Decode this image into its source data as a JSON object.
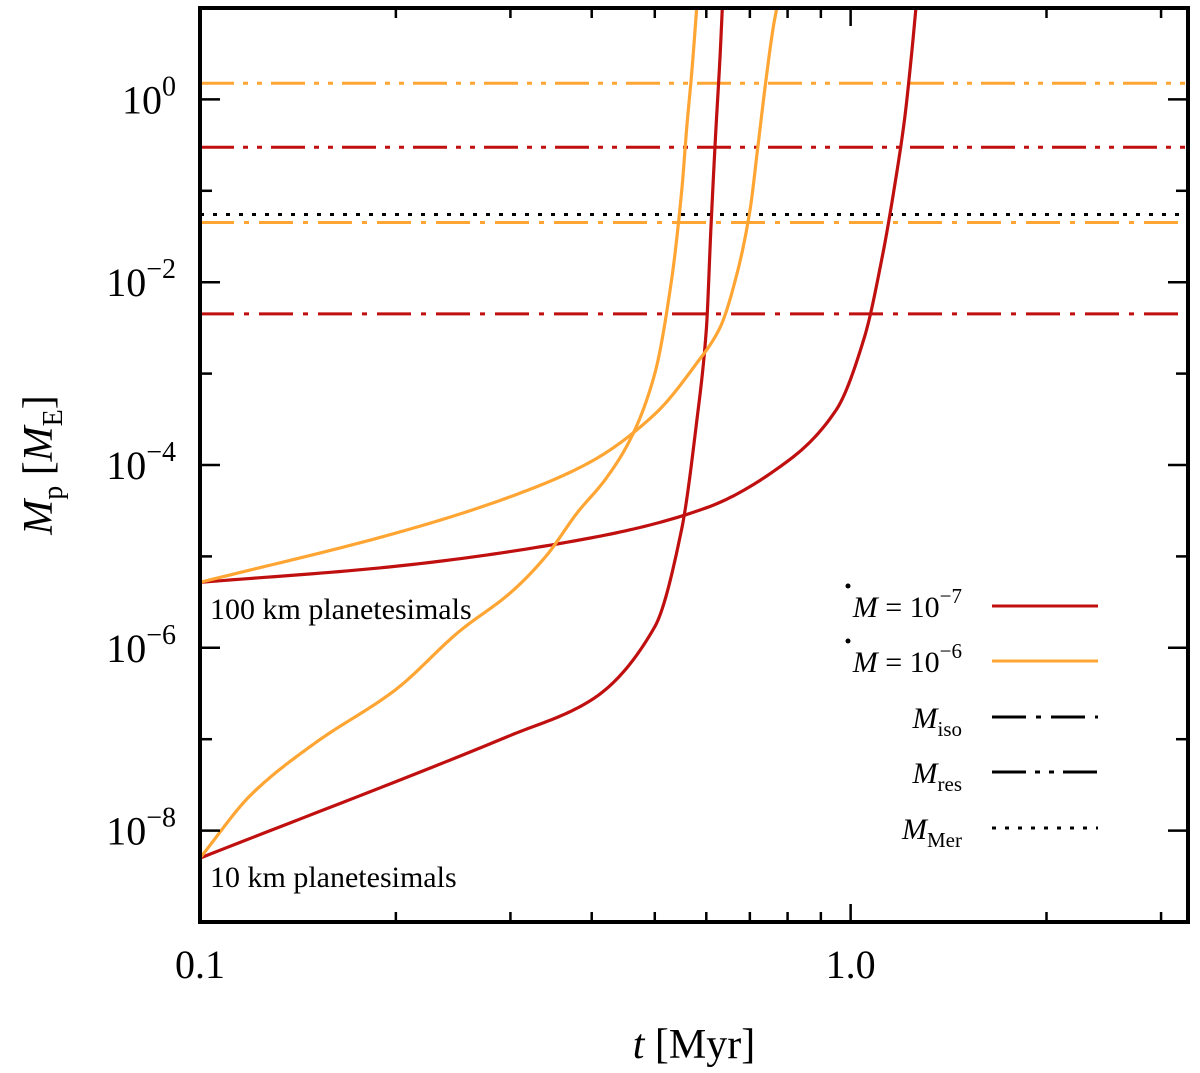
{
  "chart_data": {
    "type": "line",
    "xscale": "log",
    "yscale": "log",
    "xlim": [
      0.1,
      3.3
    ],
    "ylim": [
      1e-09,
      10
    ],
    "xlabel": {
      "var": "t",
      "unit": "[Myr]"
    },
    "ylabel": {
      "var": "M",
      "sub": "p",
      "unit_open": "[",
      "unit_var": "M",
      "unit_sub": "E",
      "unit_close": "]"
    },
    "x_tick_labels": [
      {
        "value": 0.1,
        "label": "0.1"
      },
      {
        "value": 1.0,
        "label": "1.0"
      }
    ],
    "y_tick_labels": [
      {
        "value": 1,
        "base": "10",
        "exp": "0"
      },
      {
        "value": 0.01,
        "base": "10",
        "exp": "−2"
      },
      {
        "value": 0.0001,
        "base": "10",
        "exp": "−4"
      },
      {
        "value": 1e-06,
        "base": "10",
        "exp": "−6"
      },
      {
        "value": 1e-08,
        "base": "10",
        "exp": "−8"
      }
    ],
    "colors": {
      "mdot7": "#c00f0f",
      "mdot6": "#ffa533",
      "mercury": "#000000"
    },
    "series": [
      {
        "name": "Mdot 1e-7, 100 km",
        "color_key": "mdot7",
        "points": [
          [
            0.1,
            5.2e-06
          ],
          [
            0.2,
            7.8e-06
          ],
          [
            0.4,
            1.6e-05
          ],
          [
            0.6,
            3.4e-05
          ],
          [
            0.8,
            0.00011
          ],
          [
            0.95,
            0.0004
          ],
          [
            1.05,
            0.0025
          ],
          [
            1.12,
            0.02
          ],
          [
            1.17,
            0.12
          ],
          [
            1.21,
            0.6
          ],
          [
            1.24,
            3
          ],
          [
            1.26,
            10
          ]
        ]
      },
      {
        "name": "Mdot 1e-7, 10 km",
        "color_key": "mdot7",
        "points": [
          [
            0.1,
            5e-09
          ],
          [
            0.3,
            1.1e-07
          ],
          [
            0.4,
            2.7e-07
          ],
          [
            0.5,
            1.7e-06
          ],
          [
            0.55,
            2e-05
          ],
          [
            0.58,
            0.0003
          ],
          [
            0.6,
            0.003
          ],
          [
            0.61,
            0.04
          ],
          [
            0.62,
            0.4
          ],
          [
            0.63,
            3
          ],
          [
            0.635,
            10
          ]
        ]
      },
      {
        "name": "Mdot 1e-6, 100 km",
        "color_key": "mdot6",
        "points": [
          [
            0.1,
            5.2e-06
          ],
          [
            0.2,
            1.8e-05
          ],
          [
            0.3,
            4.5e-05
          ],
          [
            0.4,
            0.00011
          ],
          [
            0.5,
            0.00036
          ],
          [
            0.58,
            0.0013
          ],
          [
            0.63,
            0.0032
          ],
          [
            0.67,
            0.013
          ],
          [
            0.7,
            0.06
          ],
          [
            0.72,
            0.3
          ],
          [
            0.74,
            1.5
          ],
          [
            0.76,
            6
          ],
          [
            0.77,
            10
          ]
        ]
      },
      {
        "name": "Mdot 1e-6, 10 km",
        "color_key": "mdot6",
        "points": [
          [
            0.1,
            5e-09
          ],
          [
            0.12,
            2.5e-08
          ],
          [
            0.15,
            9e-08
          ],
          [
            0.2,
            3.5e-07
          ],
          [
            0.25,
            1.5e-06
          ],
          [
            0.3,
            4e-06
          ],
          [
            0.34,
            1e-05
          ],
          [
            0.38,
            3e-05
          ],
          [
            0.42,
            7e-05
          ],
          [
            0.46,
            0.0002
          ],
          [
            0.5,
            0.001
          ],
          [
            0.53,
            0.01
          ],
          [
            0.55,
            0.1
          ],
          [
            0.56,
            0.5
          ],
          [
            0.57,
            2
          ],
          [
            0.58,
            10
          ]
        ]
      }
    ],
    "hlines": [
      {
        "name": "M_res Mdot 1e-6",
        "y": 1.5,
        "color_key": "mdot6",
        "style": "dash-dot-dot"
      },
      {
        "name": "M_res Mdot 1e-7",
        "y": 0.3,
        "color_key": "mdot7",
        "style": "dash-dot-dot"
      },
      {
        "name": "M_Mer",
        "y": 0.055,
        "color_key": "mercury",
        "style": "dotted"
      },
      {
        "name": "M_iso Mdot 1e-6",
        "y": 0.045,
        "color_key": "mdot6",
        "style": "dash-dot"
      },
      {
        "name": "M_iso Mdot 1e-7",
        "y": 0.0045,
        "color_key": "mdot7",
        "style": "dash-dot"
      }
    ],
    "annotations": {
      "planetesimals_100": "100 km planetesimals",
      "planetesimals_10": "10 km planetesimals"
    },
    "legend": {
      "placement": "lower-right",
      "entries": [
        {
          "kind": "mdot",
          "var": "M",
          "eq": " = 10",
          "exp": "−7",
          "color_key": "mdot7",
          "style": "solid"
        },
        {
          "kind": "mdot",
          "var": "M",
          "eq": " = 10",
          "exp": "−6",
          "color_key": "mdot6",
          "style": "solid"
        },
        {
          "kind": "mass",
          "var": "M",
          "sub": "iso",
          "color_key": "mercury",
          "style": "dash-dot"
        },
        {
          "kind": "mass",
          "var": "M",
          "sub": "res",
          "color_key": "mercury",
          "style": "dash-dot-dot"
        },
        {
          "kind": "mass",
          "var": "M",
          "sub": "Mer",
          "color_key": "mercury",
          "style": "dotted"
        }
      ]
    }
  }
}
